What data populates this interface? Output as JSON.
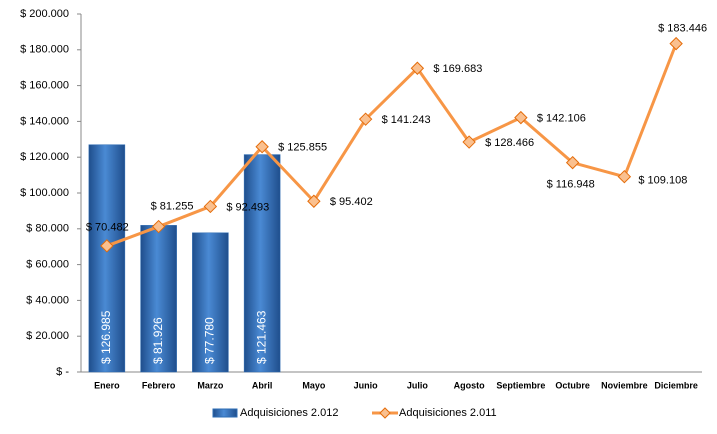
{
  "chart_data": {
    "type": "combo",
    "categories": [
      "Enero",
      "Febrero",
      "Marzo",
      "Abril",
      "Mayo",
      "Junio",
      "Julio",
      "Agosto",
      "Septiembre",
      "Octubre",
      "Noviembre",
      "Diciembre"
    ],
    "series": [
      {
        "name": "Adquisiciones 2.012",
        "type": "bar",
        "color": "#2e6db4",
        "values": [
          126985,
          81926,
          77780,
          121463,
          null,
          null,
          null,
          null,
          null,
          null,
          null,
          null
        ],
        "value_labels": [
          "$ 126.985",
          "$ 81.926",
          "$ 77.780",
          "$ 121.463",
          null,
          null,
          null,
          null,
          null,
          null,
          null,
          null
        ]
      },
      {
        "name": "Adquisiciones 2.011",
        "type": "line",
        "color": "#f79646",
        "values": [
          70482,
          81255,
          92493,
          125855,
          95402,
          141243,
          169683,
          128466,
          142106,
          116948,
          109108,
          183446
        ],
        "value_labels": [
          "$ 70.482",
          "$ 81.255",
          "$ 92.493",
          "$ 125.855",
          "$ 95.402",
          "$ 141.243",
          "$ 169.683",
          "$ 128.466",
          "$ 142.106",
          "$ 116.948",
          "$ 109.108",
          "$ 183.446"
        ]
      }
    ],
    "ylim": [
      0,
      200000
    ],
    "yticks": [
      {
        "value": 0,
        "label": "$ -"
      },
      {
        "value": 20000,
        "label": "$ 20.000"
      },
      {
        "value": 40000,
        "label": "$ 40.000"
      },
      {
        "value": 60000,
        "label": "$ 60.000"
      },
      {
        "value": 80000,
        "label": "$ 80.000"
      },
      {
        "value": 100000,
        "label": "$ 100.000"
      },
      {
        "value": 120000,
        "label": "$ 120.000"
      },
      {
        "value": 140000,
        "label": "$ 140.000"
      },
      {
        "value": 160000,
        "label": "$ 160.000"
      },
      {
        "value": 180000,
        "label": "$ 180.000"
      },
      {
        "value": 200000,
        "label": "$ 200.000"
      }
    ],
    "grid": false,
    "legend": "bottom"
  }
}
